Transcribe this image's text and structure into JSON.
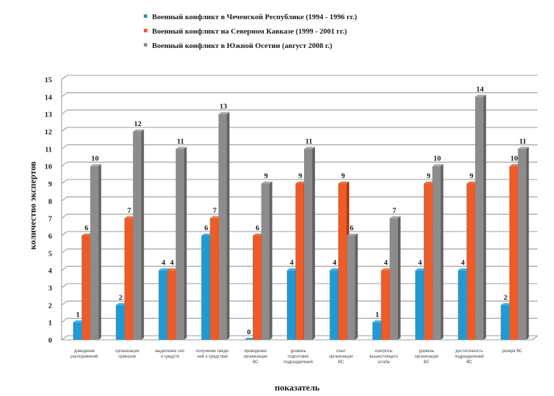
{
  "chart_data": {
    "type": "bar",
    "title": "",
    "xlabel": "показатель",
    "ylabel": "количество экспертов",
    "ylim": [
      0,
      15
    ],
    "yticks": [
      0,
      1,
      2,
      3,
      4,
      5,
      6,
      7,
      8,
      9,
      10,
      11,
      12,
      13,
      14,
      15
    ],
    "legend_position": "top-center",
    "grid": true,
    "categories": [
      [
        "доведение",
        "распоряжений"
      ],
      [
        "организация",
        "приказов"
      ],
      [
        "выделение сил",
        "и средств"
      ],
      [
        "получение сведе-",
        "ний о средствах"
      ],
      [
        "проведение",
        "организации",
        "ВС"
      ],
      [
        "уровень",
        "подготовки",
        "подразделений"
      ],
      [
        "опыт",
        "организации",
        "ВС"
      ],
      [
        "контроль",
        "вышестоящего",
        "штаба"
      ],
      [
        "уровень",
        "организации",
        "ВС"
      ],
      [
        "достаточность",
        "подразделений",
        "ВС"
      ],
      [
        "резерв ВС"
      ]
    ],
    "series": [
      {
        "name": "Военный конфликт в Чеченской Республике (1994 - 1996 гг.)",
        "color": "#1e9ad6",
        "values": [
          1,
          2,
          4,
          6,
          0,
          4,
          4,
          1,
          4,
          4,
          2
        ]
      },
      {
        "name": "Военный конфликт на Северном Кавказе (1999 - 2001 гг.)",
        "color": "#f05a24",
        "values": [
          6,
          7,
          4,
          7,
          6,
          9,
          9,
          4,
          9,
          9,
          10
        ]
      },
      {
        "name": "Военный конфликт в Южной Осетии (август 2008 г.)",
        "color": "#8c8c8c",
        "values": [
          10,
          12,
          11,
          13,
          9,
          11,
          6,
          7,
          10,
          14,
          11
        ]
      }
    ]
  }
}
